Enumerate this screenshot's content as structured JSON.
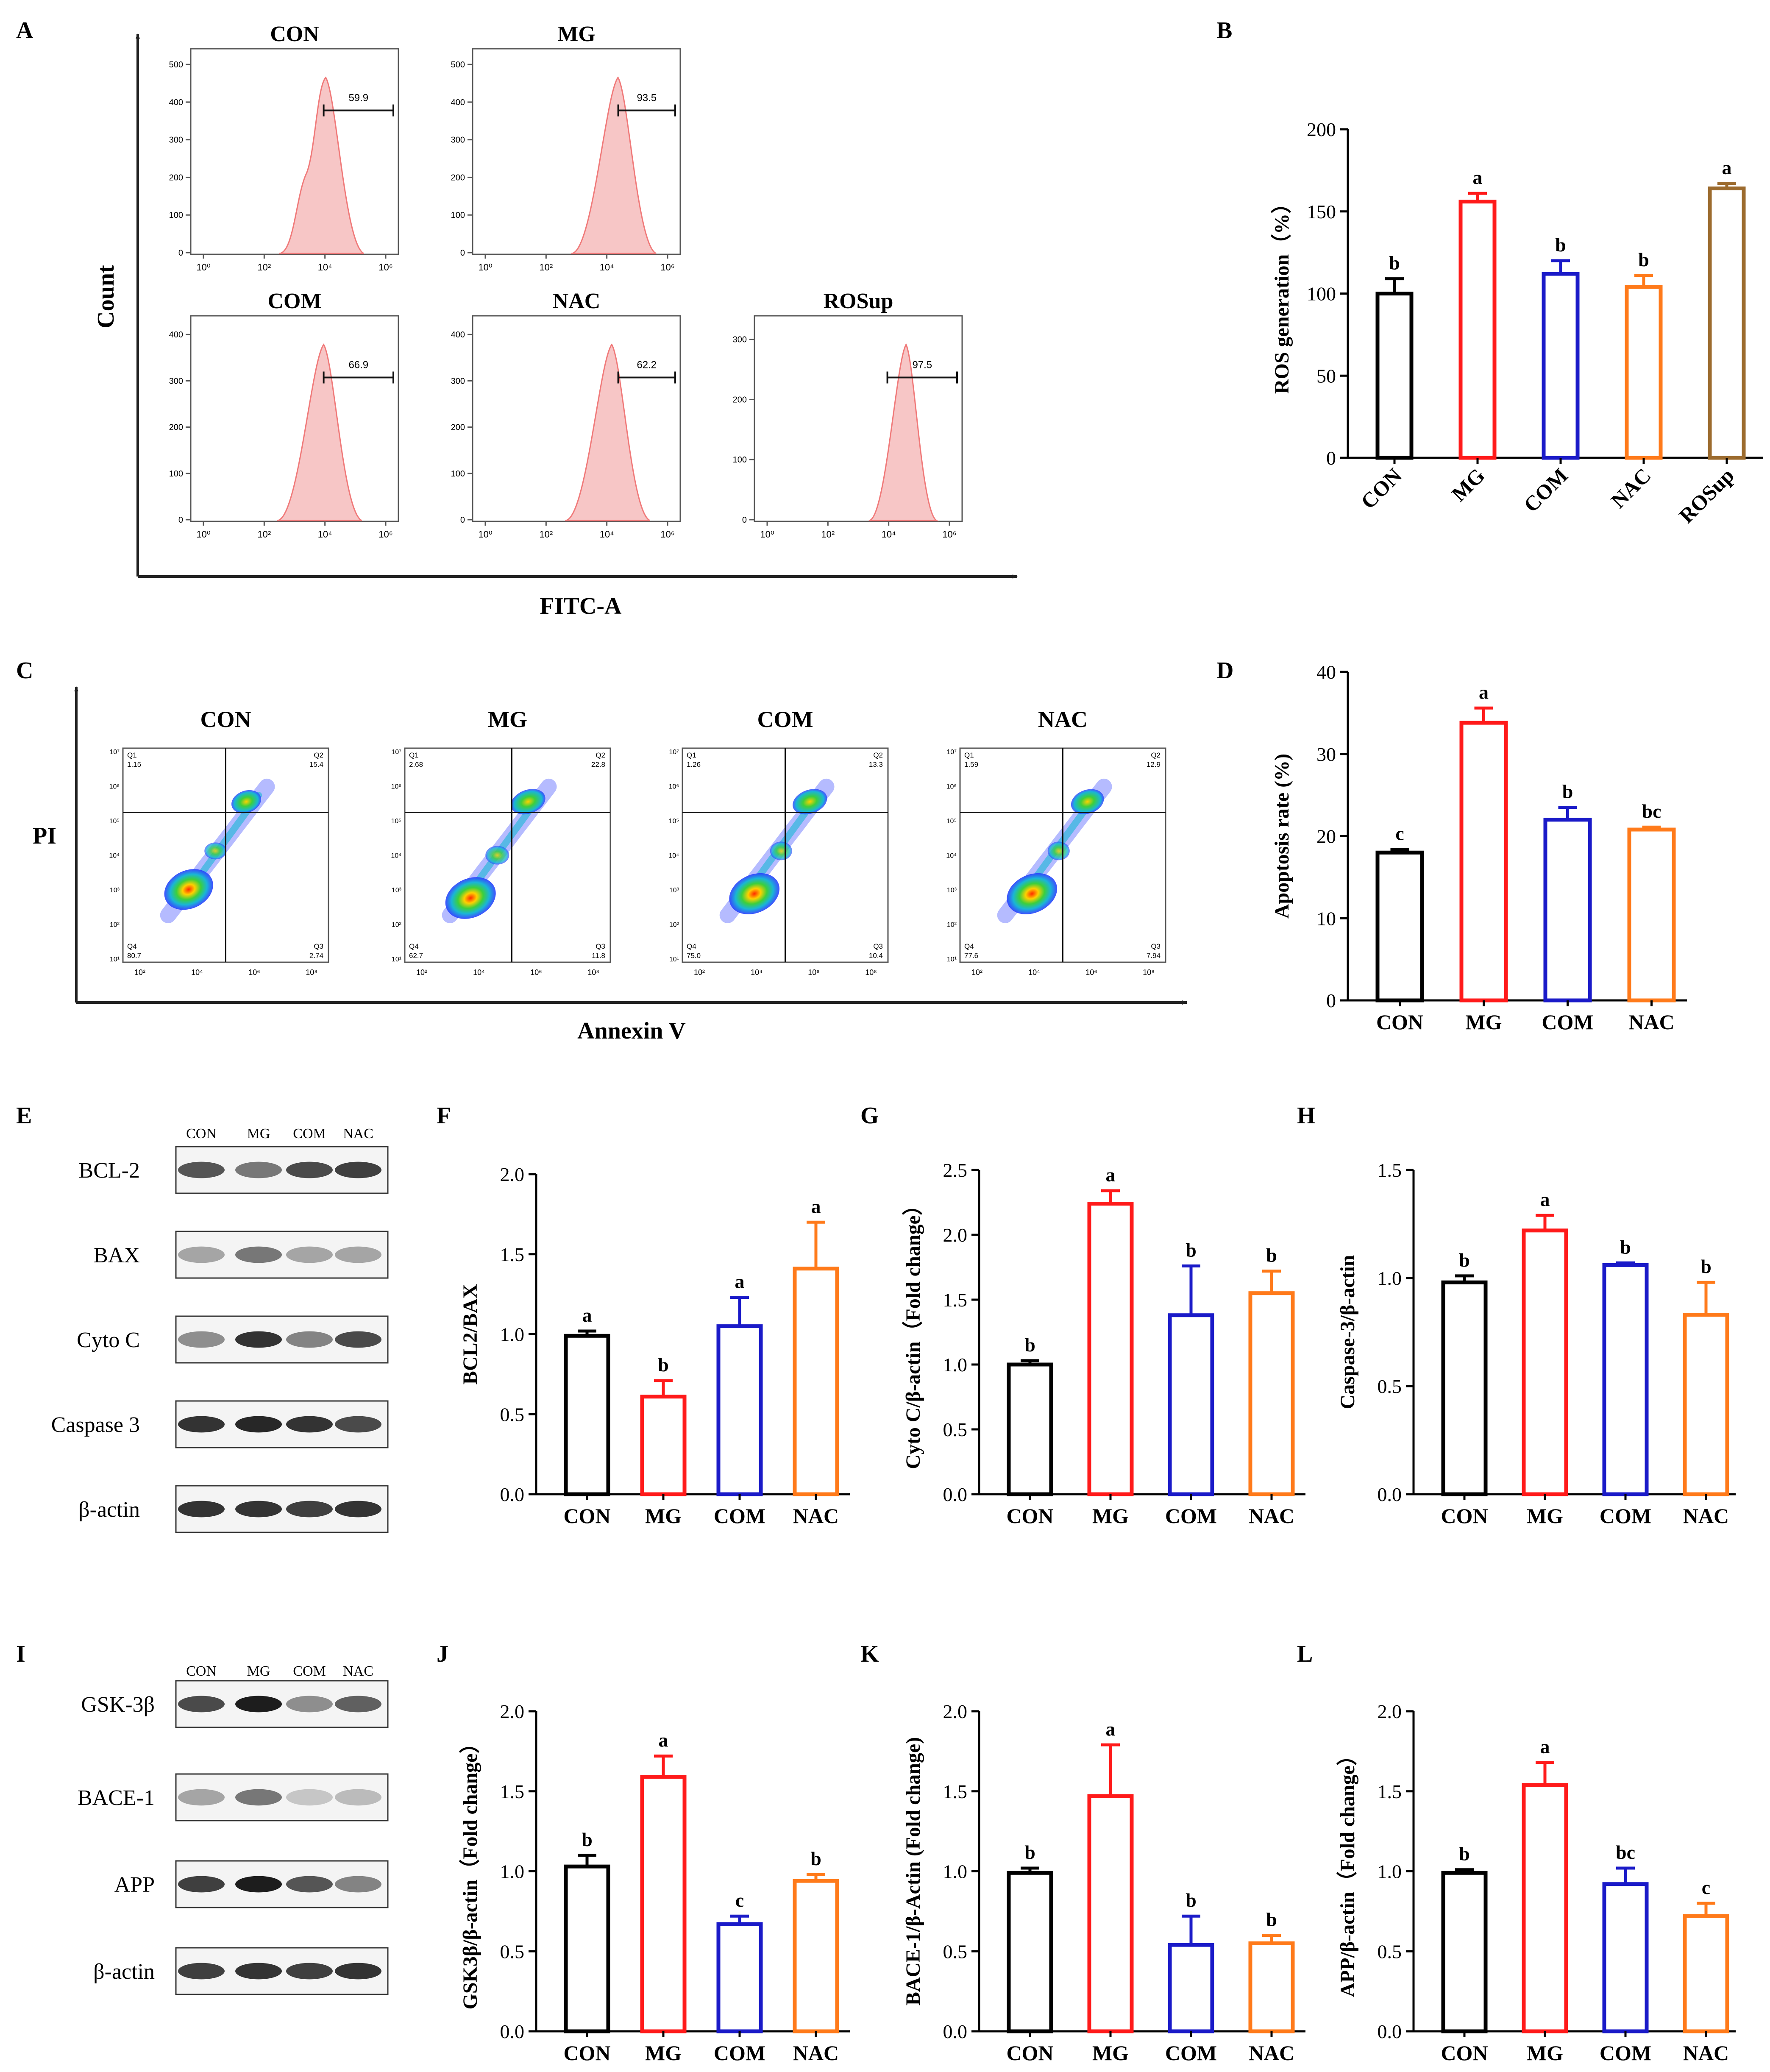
{
  "colors": {
    "CON": "#000000",
    "MG": "#ff1a1a",
    "COM": "#1a1ac8",
    "NAC": "#ff7a1a",
    "ROSup": "#9c6b2e",
    "hist_fill": "#f7c6c6",
    "hist_line": "#f07a7a"
  },
  "panels": {
    "A": "A",
    "B": "B",
    "C": "C",
    "D": "D",
    "E": "E",
    "F": "F",
    "G": "G",
    "H": "H",
    "I": "I",
    "J": "J",
    "K": "K",
    "L": "L"
  },
  "flow_a": {
    "xlabel": "FITC-A",
    "ylabel": "Count",
    "x_ticks": [
      "10⁰",
      "10²",
      "10⁴",
      "10⁶"
    ],
    "histograms": [
      {
        "title": "CON",
        "gate_value": "59.9",
        "y_ticks": [
          "0",
          "100",
          "200",
          "300",
          "400",
          "500"
        ]
      },
      {
        "title": "MG",
        "gate_value": "93.5",
        "y_ticks": [
          "0",
          "100",
          "200",
          "300",
          "400",
          "500"
        ]
      },
      {
        "title": "COM",
        "gate_value": "66.9",
        "y_ticks": [
          "0",
          "100",
          "200",
          "300",
          "400"
        ]
      },
      {
        "title": "NAC",
        "gate_value": "62.2",
        "y_ticks": [
          "0",
          "100",
          "200",
          "300",
          "400"
        ]
      },
      {
        "title": "ROSup",
        "gate_value": "97.5",
        "y_ticks": [
          "0",
          "100",
          "200",
          "300"
        ]
      }
    ]
  },
  "flow_c": {
    "xlabel": "Annexin V",
    "ylabel": "PI",
    "x_ticks": [
      "10²",
      "10⁴",
      "10⁶",
      "10⁸"
    ],
    "y_ticks": [
      "10⁷",
      "10⁶",
      "10⁵",
      "10⁴",
      "10³",
      "10²",
      "10¹"
    ],
    "plots": [
      {
        "title": "CON",
        "q1": "1.15",
        "q2": "15.4",
        "q3": "2.74",
        "q4": "80.7"
      },
      {
        "title": "MG",
        "q1": "2.68",
        "q2": "22.8",
        "q3": "11.8",
        "q4": "62.7"
      },
      {
        "title": "COM",
        "q1": "1.26",
        "q2": "13.3",
        "q3": "10.4",
        "q4": "75.0"
      },
      {
        "title": "NAC",
        "q1": "1.59",
        "q2": "12.9",
        "q3": "7.94",
        "q4": "77.6"
      }
    ],
    "quad_labels": [
      "Q1",
      "Q2",
      "Q3",
      "Q4"
    ]
  },
  "blots_e": {
    "lanes": [
      "CON",
      "MG",
      "COM",
      "NAC"
    ],
    "rows": [
      "BCL-2",
      "BAX",
      "Cyto C",
      "Caspase 3",
      "β-actin"
    ]
  },
  "blots_i": {
    "lanes": [
      "CON",
      "MG",
      "COM",
      "NAC"
    ],
    "rows": [
      "GSK-3β",
      "BACE-1",
      "APP",
      "β-actin"
    ]
  },
  "chart_data": [
    {
      "id": "B",
      "type": "bar",
      "categories": [
        "CON",
        "MG",
        "COM",
        "NAC",
        "ROSup"
      ],
      "values": [
        100,
        156,
        112,
        104,
        164
      ],
      "errors": [
        9,
        5,
        8,
        7,
        3
      ],
      "letters": [
        "b",
        "a",
        "b",
        "b",
        "a"
      ],
      "ylabel": "ROS generation（%）",
      "ylim": [
        0,
        200
      ],
      "ticks": [
        0,
        50,
        100,
        150,
        200
      ],
      "rotate_x": true
    },
    {
      "id": "D",
      "type": "bar",
      "categories": [
        "CON",
        "MG",
        "COM",
        "NAC"
      ],
      "values": [
        18,
        33.8,
        22,
        20.8
      ],
      "errors": [
        0.4,
        1.8,
        1.5,
        0.3
      ],
      "letters": [
        "c",
        "a",
        "b",
        "bc"
      ],
      "ylabel": "Apoptosis rate (%)",
      "ylim": [
        0,
        40
      ],
      "ticks": [
        0,
        10,
        20,
        30,
        40
      ],
      "rotate_x": false
    },
    {
      "id": "F",
      "type": "bar",
      "categories": [
        "CON",
        "MG",
        "COM",
        "NAC"
      ],
      "values": [
        0.99,
        0.61,
        1.05,
        1.41
      ],
      "errors": [
        0.03,
        0.1,
        0.18,
        0.29
      ],
      "letters": [
        "a",
        "b",
        "a",
        "a"
      ],
      "ylabel": "BCL2/BAX",
      "ylim": [
        0,
        2
      ],
      "ticks": [
        0,
        0.5,
        1,
        1.5,
        2
      ],
      "tick_labels": [
        "0.0",
        "0.5",
        "1.0",
        "1.5",
        "2.0"
      ],
      "rotate_x": false
    },
    {
      "id": "G",
      "type": "bar",
      "categories": [
        "CON",
        "MG",
        "COM",
        "NAC"
      ],
      "values": [
        1.0,
        2.24,
        1.38,
        1.55
      ],
      "errors": [
        0.03,
        0.1,
        0.38,
        0.17
      ],
      "letters": [
        "b",
        "a",
        "b",
        "b"
      ],
      "ylabel": "Cyto C/β-actin（Fold change）",
      "ylim": [
        0,
        2.5
      ],
      "ticks": [
        0,
        0.5,
        1,
        1.5,
        2,
        2.5
      ],
      "tick_labels": [
        "0.0",
        "0.5",
        "1.0",
        "1.5",
        "2.0",
        "2.5"
      ],
      "rotate_x": false
    },
    {
      "id": "H",
      "type": "bar",
      "categories": [
        "CON",
        "MG",
        "COM",
        "NAC"
      ],
      "values": [
        0.98,
        1.22,
        1.06,
        0.83
      ],
      "errors": [
        0.03,
        0.07,
        0.01,
        0.15
      ],
      "letters": [
        "b",
        "a",
        "b",
        "b"
      ],
      "ylabel": "Caspase-3/β-actin",
      "ylim": [
        0,
        1.5
      ],
      "ticks": [
        0,
        0.5,
        1,
        1.5
      ],
      "tick_labels": [
        "0.0",
        "0.5",
        "1.0",
        "1.5"
      ],
      "rotate_x": false
    },
    {
      "id": "J",
      "type": "bar",
      "categories": [
        "CON",
        "MG",
        "COM",
        "NAC"
      ],
      "values": [
        1.03,
        1.59,
        0.67,
        0.94
      ],
      "errors": [
        0.07,
        0.13,
        0.05,
        0.04
      ],
      "letters": [
        "b",
        "a",
        "c",
        "b"
      ],
      "ylabel": "GSK3β/β-actin（Fold change）",
      "ylim": [
        0,
        2
      ],
      "ticks": [
        0,
        0.5,
        1,
        1.5,
        2
      ],
      "tick_labels": [
        "0.0",
        "0.5",
        "1.0",
        "1.5",
        "2.0"
      ],
      "rotate_x": false
    },
    {
      "id": "K",
      "type": "bar",
      "categories": [
        "CON",
        "MG",
        "COM",
        "NAC"
      ],
      "values": [
        0.99,
        1.47,
        0.54,
        0.55
      ],
      "errors": [
        0.03,
        0.32,
        0.18,
        0.05
      ],
      "letters": [
        "b",
        "a",
        "b",
        "b"
      ],
      "ylabel": "BACE-1/β-Actin (Fold change)",
      "ylim": [
        0,
        2
      ],
      "ticks": [
        0,
        0.5,
        1,
        1.5,
        2
      ],
      "tick_labels": [
        "0.0",
        "0.5",
        "1.0",
        "1.5",
        "2.0"
      ],
      "rotate_x": false
    },
    {
      "id": "L",
      "type": "bar",
      "categories": [
        "CON",
        "MG",
        "COM",
        "NAC"
      ],
      "values": [
        0.99,
        1.54,
        0.92,
        0.72
      ],
      "errors": [
        0.02,
        0.14,
        0.1,
        0.08
      ],
      "letters": [
        "b",
        "a",
        "bc",
        "c"
      ],
      "ylabel": "APP/β-actin（Fold change）",
      "ylim": [
        0,
        2
      ],
      "ticks": [
        0,
        0.5,
        1,
        1.5,
        2
      ],
      "tick_labels": [
        "0.0",
        "0.5",
        "1.0",
        "1.5",
        "2.0"
      ],
      "rotate_x": false
    }
  ]
}
